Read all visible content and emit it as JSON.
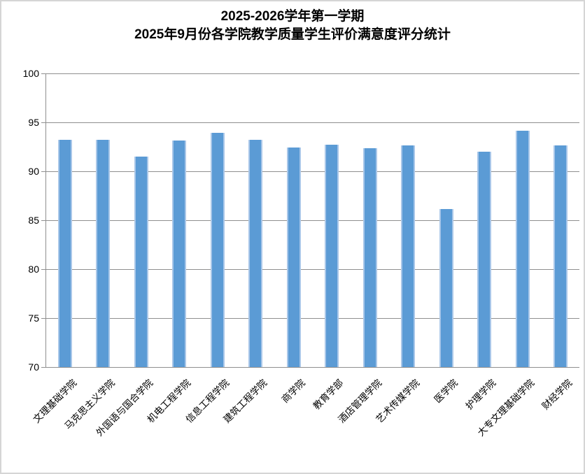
{
  "title": {
    "line1": "2025-2026学年第一学期",
    "line2": "2025年9月份各学院教学质量学生评价满意度评分统计"
  },
  "chart_data": {
    "type": "bar",
    "title": "2025-2026学年第一学期 2025年9月份各学院教学质量学生评价满意度评分统计",
    "categories": [
      "文理基础学院",
      "马克思主义学院",
      "外国语与国合学院",
      "机电工程学院",
      "信息工程学院",
      "建筑工程学院",
      "商学院",
      "教育学部",
      "酒店管理学院",
      "艺术传媒学院",
      "医学院",
      "护理学院",
      "大专文理基础学院",
      "财经学院"
    ],
    "values": [
      93.2,
      93.2,
      91.5,
      93.1,
      93.9,
      93.2,
      92.4,
      92.7,
      92.3,
      92.6,
      86.1,
      92.0,
      94.1,
      92.6
    ],
    "xlabel": "",
    "ylabel": "",
    "ylim": [
      70,
      100
    ],
    "yticks": [
      70,
      75,
      80,
      85,
      90,
      95,
      100
    ],
    "grid": true,
    "legend_position": "none",
    "bar_color": "#5B9BD5",
    "bar_edge_color": "#A9C7E9",
    "gridline_color": "#8F8F8F",
    "text_color": "#000000",
    "background_color": "#FFFFFF",
    "border_color": "#D5D5D5"
  }
}
